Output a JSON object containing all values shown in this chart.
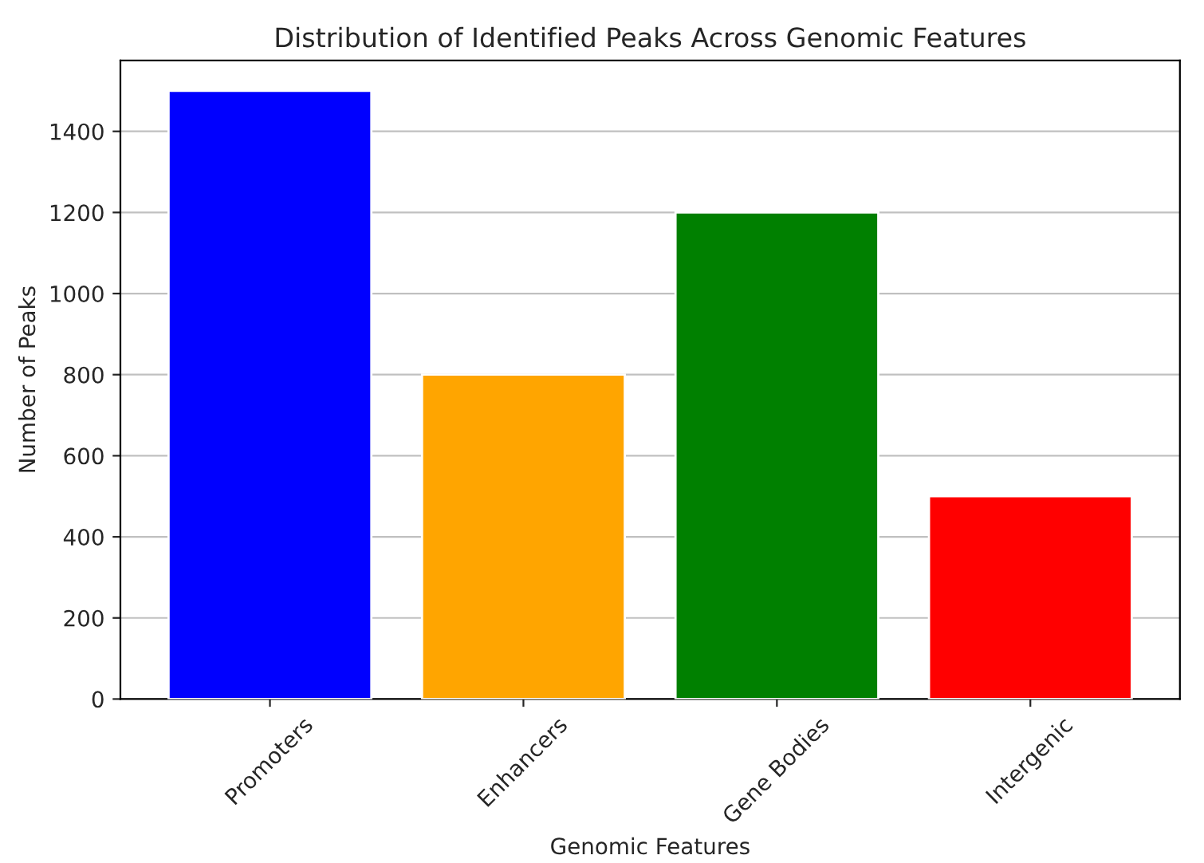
{
  "chart_data": {
    "type": "bar",
    "title": "Distribution of Identified Peaks Across Genomic Features",
    "xlabel": "Genomic Features",
    "ylabel": "Number of Peaks",
    "categories": [
      "Promoters",
      "Enhancers",
      "Gene Bodies",
      "Intergenic"
    ],
    "values": [
      1500,
      800,
      1200,
      500
    ],
    "colors": [
      "#0000ff",
      "#ffa500",
      "#008000",
      "#ff0000"
    ],
    "ylim": [
      0,
      1575
    ],
    "yticks": [
      0,
      200,
      400,
      600,
      800,
      1000,
      1200,
      1400
    ],
    "grid": "y"
  }
}
